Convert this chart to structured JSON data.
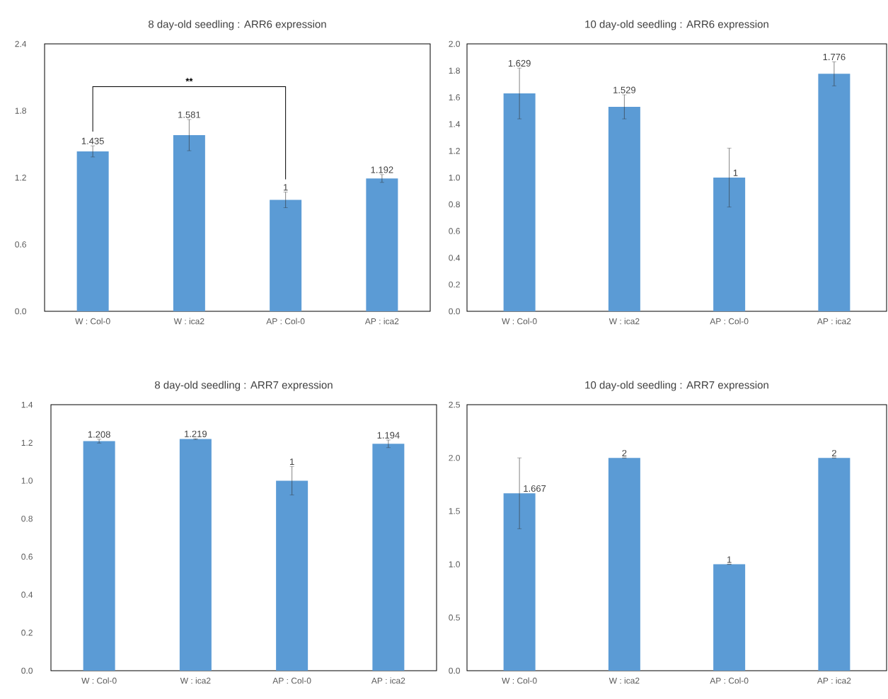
{
  "chart_data": [
    {
      "type": "bar",
      "title": "8 day-old seedling : ARR6 expression",
      "categories": [
        "W : Col-0",
        "W : ica2",
        "AP : Col-0",
        "AP : ica2"
      ],
      "values": [
        1.435,
        1.581,
        1,
        1.192
      ],
      "errors": [
        0.05,
        0.14,
        0.07,
        0.035
      ],
      "color": "#5b9bd5",
      "data_labels": true,
      "ylim": [
        0,
        2.4
      ],
      "yticks": [
        {
          "value": 0,
          "label": "0.0"
        },
        0.6,
        1.2,
        1.8,
        2.4
      ],
      "annotations": [
        "**"
      ]
    },
    {
      "type": "bar",
      "title": "10 day-old seedling : ARR6 expression",
      "categories": [
        "W : Col-0",
        "W : ica2",
        "AP : Col-0",
        "AP : ica2"
      ],
      "values": [
        1.629,
        1.529,
        1,
        1.776
      ],
      "errors": [
        0.19,
        0.09,
        0.22,
        0.09
      ],
      "color": "#5b9bd5",
      "data_labels": true,
      "ylim": [
        0,
        2.0
      ],
      "yticks": [
        {
          "value": 0,
          "label": "0.0"
        },
        0.2,
        0.4,
        0.6,
        0.8,
        {
          "value": 1,
          "label": "1.0"
        },
        1.2,
        1.4,
        1.6,
        1.8,
        {
          "value": 2,
          "label": "2.0"
        }
      ]
    },
    {
      "type": "bar",
      "title": "8 day-old seedling : ARR7 expression",
      "categories": [
        "W : Col-0",
        "W : ica2",
        "AP : Col-0",
        "AP : ica2"
      ],
      "values": [
        1.208,
        1.219,
        1,
        1.194
      ],
      "errors": [
        0.01,
        0.002,
        0.075,
        0.02
      ],
      "color": "#5b9bd5",
      "data_labels": true,
      "ylim": [
        0,
        1.4
      ],
      "yticks": [
        {
          "value": 0,
          "label": "0.0"
        },
        0.2,
        0.4,
        0.6,
        0.8,
        {
          "value": 1,
          "label": "1.0"
        },
        1.2,
        1.4
      ]
    },
    {
      "type": "bar",
      "title": "10 day-old seedling : ARR7 expression",
      "categories": [
        "W : Col-0",
        "W : ica2",
        "AP : Col-0",
        "AP : ica2"
      ],
      "values": [
        1.667,
        2,
        1,
        2
      ],
      "errors": [
        0.333,
        0,
        0,
        0
      ],
      "color": "#5b9bd5",
      "data_labels": true,
      "ylim": [
        0,
        2.5
      ],
      "yticks": [
        {
          "value": 0,
          "label": "0.0"
        },
        0.5,
        {
          "value": 1,
          "label": "1.0"
        },
        1.5,
        {
          "value": 2,
          "label": "2.0"
        },
        2.5
      ]
    }
  ]
}
